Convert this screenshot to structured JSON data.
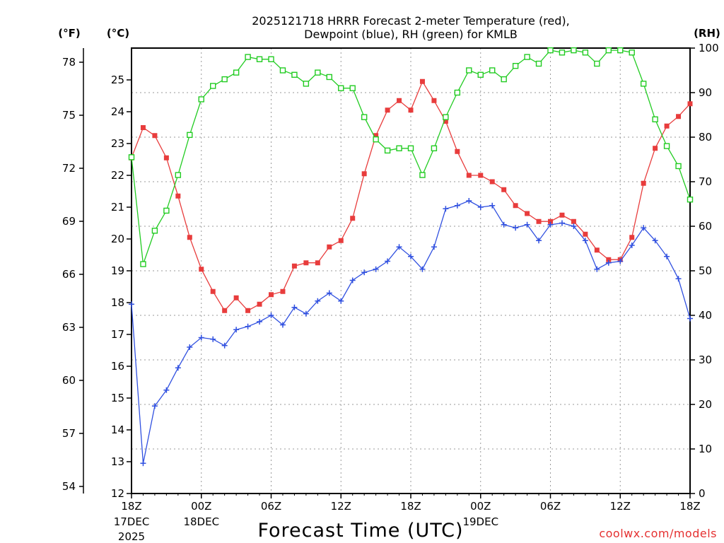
{
  "chart_data": {
    "type": "line",
    "title_line1": "2025121718 HRRR Forecast 2-meter Temperature (red),",
    "title_line2": "Dewpoint (blue), RH (green) for KMLB",
    "xlabel": "Forecast Time (UTC)",
    "credit": "coolwx.com/models",
    "units": {
      "fahrenheit": "(°F)",
      "celsius": "(°C)",
      "rh": "(RH)"
    },
    "x_range_hours": [
      0,
      48
    ],
    "x_ticks": [
      {
        "hour": 0,
        "label": "18Z",
        "sub1": "17DEC",
        "sub2": "2025"
      },
      {
        "hour": 6,
        "label": "00Z",
        "sub1": "18DEC",
        "sub2": ""
      },
      {
        "hour": 12,
        "label": "06Z",
        "sub1": "",
        "sub2": ""
      },
      {
        "hour": 18,
        "label": "12Z",
        "sub1": "",
        "sub2": ""
      },
      {
        "hour": 24,
        "label": "18Z",
        "sub1": "",
        "sub2": ""
      },
      {
        "hour": 30,
        "label": "00Z",
        "sub1": "19DEC",
        "sub2": ""
      },
      {
        "hour": 36,
        "label": "06Z",
        "sub1": "",
        "sub2": ""
      },
      {
        "hour": 42,
        "label": "12Z",
        "sub1": "",
        "sub2": ""
      },
      {
        "hour": 48,
        "label": "18Z",
        "sub1": "",
        "sub2": ""
      }
    ],
    "celsius_axis": {
      "range": [
        12,
        26
      ],
      "ticks": [
        "12",
        "13",
        "14",
        "15",
        "16",
        "17",
        "18",
        "19",
        "20",
        "21",
        "22",
        "23",
        "24",
        "25"
      ]
    },
    "fahrenheit_axis": {
      "ticks": [
        "54",
        "57",
        "60",
        "63",
        "66",
        "69",
        "72",
        "75",
        "78"
      ]
    },
    "rh_axis": {
      "range": [
        0,
        100
      ],
      "ticks": [
        "0",
        "10",
        "20",
        "30",
        "40",
        "50",
        "60",
        "70",
        "80",
        "90",
        "100"
      ]
    },
    "series": [
      {
        "name": "Temperature",
        "unit": "C",
        "color": "#e83c3c",
        "marker": "filled-square",
        "values": [
          22.55,
          23.5,
          23.25,
          22.55,
          21.35,
          20.05,
          19.05,
          18.35,
          17.75,
          18.15,
          17.75,
          17.95,
          18.25,
          18.35,
          19.15,
          19.25,
          19.25,
          19.75,
          19.95,
          20.65,
          22.05,
          23.25,
          24.05,
          24.35,
          24.05,
          24.95,
          24.35,
          23.7,
          22.75,
          22.0,
          22.0,
          21.8,
          21.55,
          21.05,
          20.8,
          20.55,
          20.55,
          20.75,
          20.55,
          20.15,
          19.65,
          19.35,
          19.35,
          20.05,
          21.75,
          22.85,
          23.55,
          23.85,
          24.25
        ]
      },
      {
        "name": "Dewpoint",
        "unit": "C",
        "color": "#3050e0",
        "marker": "plus",
        "values": [
          17.95,
          12.95,
          14.75,
          15.25,
          15.95,
          16.6,
          16.9,
          16.85,
          16.65,
          17.15,
          17.25,
          17.4,
          17.6,
          17.3,
          17.85,
          17.65,
          18.05,
          18.3,
          18.05,
          18.7,
          18.95,
          19.05,
          19.3,
          19.75,
          19.45,
          19.05,
          19.75,
          20.95,
          21.05,
          21.2,
          21.0,
          21.05,
          20.45,
          20.35,
          20.45,
          19.95,
          20.45,
          20.5,
          20.4,
          19.95,
          19.05,
          19.25,
          19.3,
          19.8,
          20.35,
          19.95,
          19.45,
          18.75,
          17.5
        ]
      },
      {
        "name": "RH",
        "unit": "%",
        "color": "#22cc22",
        "marker": "open-square",
        "values": [
          75.5,
          51.5,
          59,
          63.5,
          71.5,
          80.5,
          88.5,
          91.5,
          93,
          94.5,
          98,
          97.5,
          97.5,
          95,
          94,
          92,
          94.5,
          93.5,
          91,
          91,
          84.5,
          79.5,
          77,
          77.5,
          77.5,
          71.5,
          77.5,
          84.5,
          90,
          95,
          94,
          95,
          93,
          96,
          98,
          96.5,
          99.5,
          99,
          99.5,
          99,
          96.5,
          99.5,
          99.5,
          99,
          92,
          84,
          78,
          73.5,
          66
        ]
      }
    ]
  }
}
